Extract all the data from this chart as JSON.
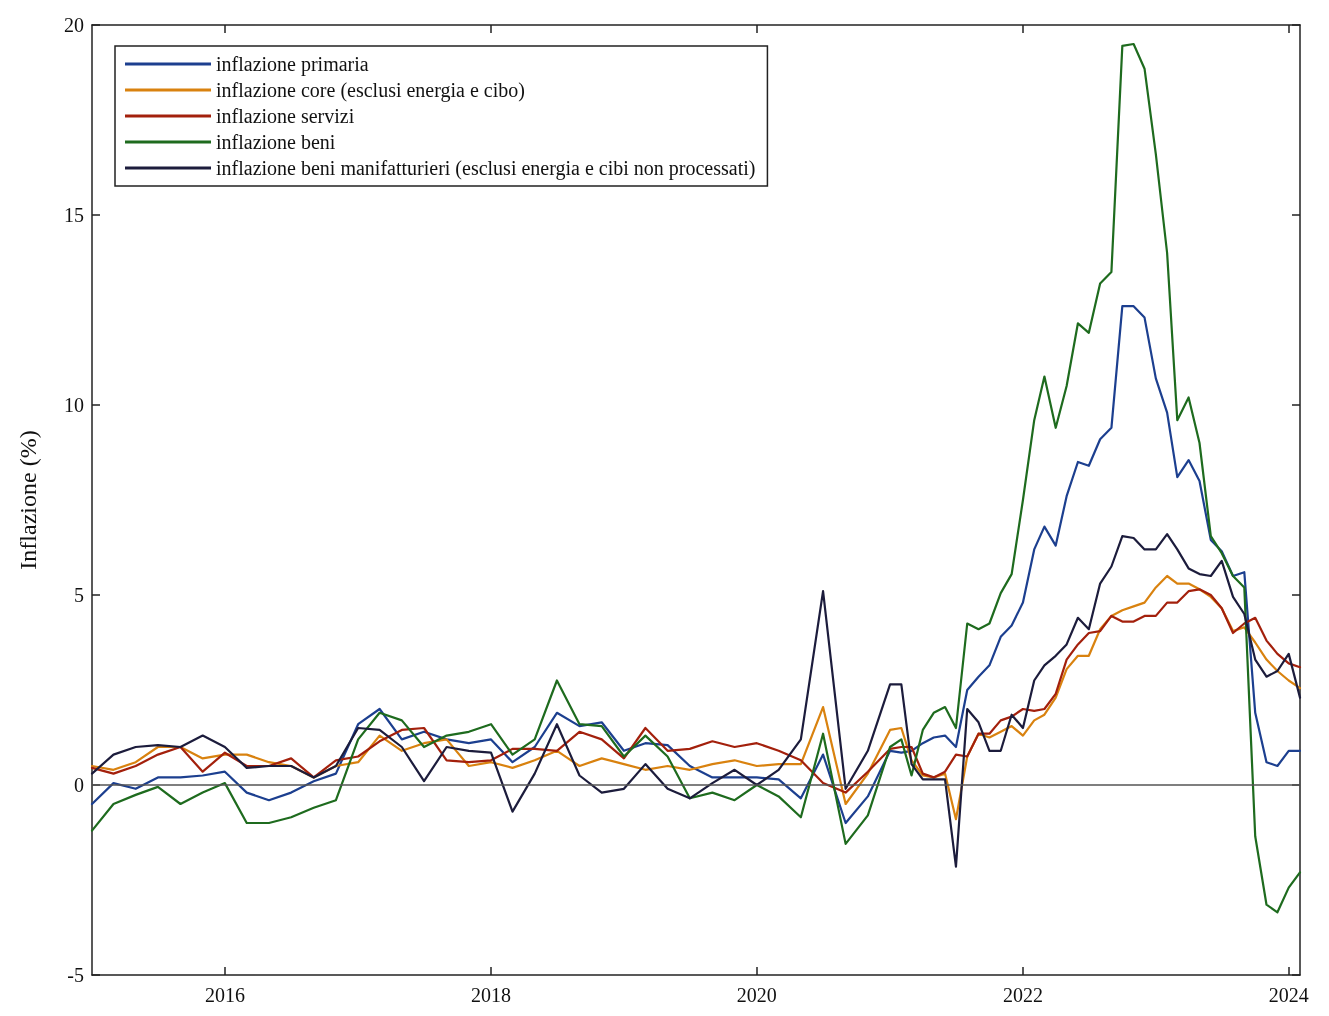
{
  "chart_data": {
    "type": "line",
    "ylabel": "Inflazione (%)",
    "x": [
      "2015-01",
      "2015-03",
      "2015-05",
      "2015-07",
      "2015-09",
      "2015-11",
      "2016-01",
      "2016-03",
      "2016-05",
      "2016-07",
      "2016-09",
      "2016-11",
      "2017-01",
      "2017-03",
      "2017-05",
      "2017-07",
      "2017-09",
      "2017-11",
      "2018-01",
      "2018-03",
      "2018-05",
      "2018-07",
      "2018-09",
      "2018-11",
      "2019-01",
      "2019-03",
      "2019-05",
      "2019-07",
      "2019-09",
      "2019-11",
      "2020-01",
      "2020-03",
      "2020-05",
      "2020-07",
      "2020-09",
      "2020-11",
      "2021-01",
      "2021-02",
      "2021-03",
      "2021-04",
      "2021-05",
      "2021-06",
      "2021-07",
      "2021-08",
      "2021-09",
      "2021-10",
      "2021-11",
      "2021-12",
      "2022-01",
      "2022-02",
      "2022-03",
      "2022-04",
      "2022-05",
      "2022-06",
      "2022-07",
      "2022-08",
      "2022-09",
      "2022-10",
      "2022-11",
      "2022-12",
      "2023-01",
      "2023-02",
      "2023-03",
      "2023-04",
      "2023-05",
      "2023-06",
      "2023-07",
      "2023-08",
      "2023-09",
      "2023-10",
      "2023-11",
      "2023-12",
      "2024-01",
      "2024-02"
    ],
    "series": [
      {
        "name": "inflazione primaria",
        "color": "#1c3f8f",
        "values": [
          -0.5,
          0.05,
          -0.1,
          0.2,
          0.2,
          0.25,
          0.35,
          -0.2,
          -0.4,
          -0.2,
          0.1,
          0.3,
          1.6,
          2.0,
          1.2,
          1.4,
          1.2,
          1.1,
          1.2,
          0.6,
          1.0,
          1.9,
          1.55,
          1.65,
          0.9,
          1.1,
          1.05,
          0.5,
          0.2,
          0.2,
          0.2,
          0.15,
          -0.35,
          0.8,
          -1.0,
          -0.3,
          0.9,
          0.85,
          0.9,
          1.1,
          1.25,
          1.3,
          1.0,
          2.5,
          2.85,
          3.15,
          3.9,
          4.2,
          4.8,
          6.2,
          6.8,
          6.3,
          7.6,
          8.5,
          8.4,
          9.1,
          9.4,
          12.6,
          12.6,
          12.3,
          10.7,
          9.8,
          8.1,
          8.55,
          8.0,
          6.45,
          6.15,
          5.5,
          5.6,
          1.9,
          0.6,
          0.5,
          0.9,
          0.9
        ]
      },
      {
        "name": "inflazione core (esclusi energia e cibo)",
        "color": "#d9820f",
        "values": [
          0.5,
          0.4,
          0.6,
          1.0,
          1.0,
          0.7,
          0.8,
          0.8,
          0.6,
          0.5,
          0.2,
          0.5,
          0.6,
          1.3,
          0.9,
          1.1,
          1.2,
          0.5,
          0.6,
          0.45,
          0.65,
          0.9,
          0.5,
          0.7,
          0.55,
          0.4,
          0.5,
          0.4,
          0.55,
          0.65,
          0.5,
          0.55,
          0.55,
          2.05,
          -0.5,
          0.3,
          1.45,
          1.5,
          0.65,
          0.25,
          0.2,
          0.3,
          -0.9,
          0.75,
          1.35,
          1.25,
          1.4,
          1.55,
          1.3,
          1.7,
          1.85,
          2.3,
          3.05,
          3.4,
          3.4,
          4.1,
          4.45,
          4.6,
          4.7,
          4.8,
          5.2,
          5.5,
          5.3,
          5.3,
          5.15,
          4.95,
          4.65,
          4.05,
          4.15,
          3.75,
          3.3,
          3.0,
          2.75,
          2.55
        ]
      },
      {
        "name": "inflazione servizi",
        "color": "#a3200c",
        "values": [
          0.45,
          0.3,
          0.5,
          0.8,
          1.0,
          0.35,
          0.85,
          0.5,
          0.5,
          0.7,
          0.2,
          0.65,
          0.75,
          1.15,
          1.45,
          1.5,
          0.65,
          0.6,
          0.65,
          0.95,
          0.95,
          0.9,
          1.4,
          1.2,
          0.7,
          1.5,
          0.9,
          0.95,
          1.15,
          1.0,
          1.1,
          0.9,
          0.65,
          0.05,
          -0.2,
          0.35,
          0.95,
          1.0,
          1.0,
          0.3,
          0.2,
          0.35,
          0.8,
          0.75,
          1.35,
          1.35,
          1.7,
          1.8,
          2.0,
          1.95,
          2.0,
          2.4,
          3.3,
          3.7,
          4.0,
          4.05,
          4.45,
          4.3,
          4.3,
          4.45,
          4.45,
          4.8,
          4.8,
          5.1,
          5.15,
          5.0,
          4.65,
          4.0,
          4.25,
          4.4,
          3.8,
          3.45,
          3.2,
          3.1
        ]
      },
      {
        "name": "inflazione beni",
        "color": "#1e6b1e",
        "values": [
          -1.2,
          -0.5,
          -0.26,
          -0.05,
          -0.5,
          -0.2,
          0.05,
          -1.0,
          -1.0,
          -0.85,
          -0.6,
          -0.4,
          1.2,
          1.9,
          1.7,
          1.0,
          1.3,
          1.4,
          1.6,
          0.8,
          1.2,
          2.75,
          1.6,
          1.55,
          0.75,
          1.3,
          0.75,
          -0.35,
          -0.2,
          -0.4,
          0,
          -0.3,
          -0.85,
          1.35,
          -1.55,
          -0.8,
          1.0,
          1.2,
          0.25,
          1.45,
          1.9,
          2.05,
          1.5,
          4.25,
          4.1,
          4.25,
          5.05,
          5.55,
          7.5,
          9.6,
          10.75,
          9.4,
          10.5,
          12.15,
          11.9,
          13.2,
          13.5,
          19.45,
          19.5,
          18.85,
          16.6,
          14.0,
          9.6,
          10.2,
          9.0,
          6.55,
          6.1,
          5.5,
          5.2,
          -1.35,
          -3.15,
          -3.35,
          -2.7,
          -2.3
        ]
      },
      {
        "name": "inflazione beni manifatturieri (esclusi energia e cibi non processati)",
        "color": "#1c1c3c",
        "values": [
          0.3,
          0.8,
          1.0,
          1.05,
          1.0,
          1.3,
          1.0,
          0.45,
          0.5,
          0.5,
          0.2,
          0.5,
          1.5,
          1.45,
          1.0,
          0.1,
          1.0,
          0.9,
          0.85,
          -0.7,
          0.3,
          1.6,
          0.25,
          -0.2,
          -0.1,
          0.55,
          -0.1,
          -0.35,
          0.05,
          0.4,
          0,
          0.4,
          1.2,
          5.1,
          -0.1,
          0.9,
          2.65,
          2.65,
          0.55,
          0.15,
          0.15,
          0.15,
          -2.15,
          2.0,
          1.65,
          0.9,
          0.9,
          1.85,
          1.5,
          2.75,
          3.15,
          3.4,
          3.7,
          4.4,
          4.1,
          5.3,
          5.75,
          6.55,
          6.5,
          6.2,
          6.2,
          6.6,
          6.2,
          5.7,
          5.55,
          5.5,
          5.9,
          4.95,
          4.5,
          3.3,
          2.85,
          3.0,
          3.45,
          2.3
        ]
      }
    ],
    "xlim": [
      "2015-01",
      "2024-02"
    ],
    "xticks": [
      "2016",
      "2018",
      "2020",
      "2022",
      "2024"
    ],
    "ylim": [
      -5,
      20
    ],
    "yticks": [
      -5,
      0,
      5,
      10,
      15,
      20
    ],
    "ref_lines": [
      {
        "axis": "y",
        "value": 0,
        "color": "#555555"
      }
    ],
    "grid": false,
    "legend": "top left",
    "line_style": "solid"
  }
}
